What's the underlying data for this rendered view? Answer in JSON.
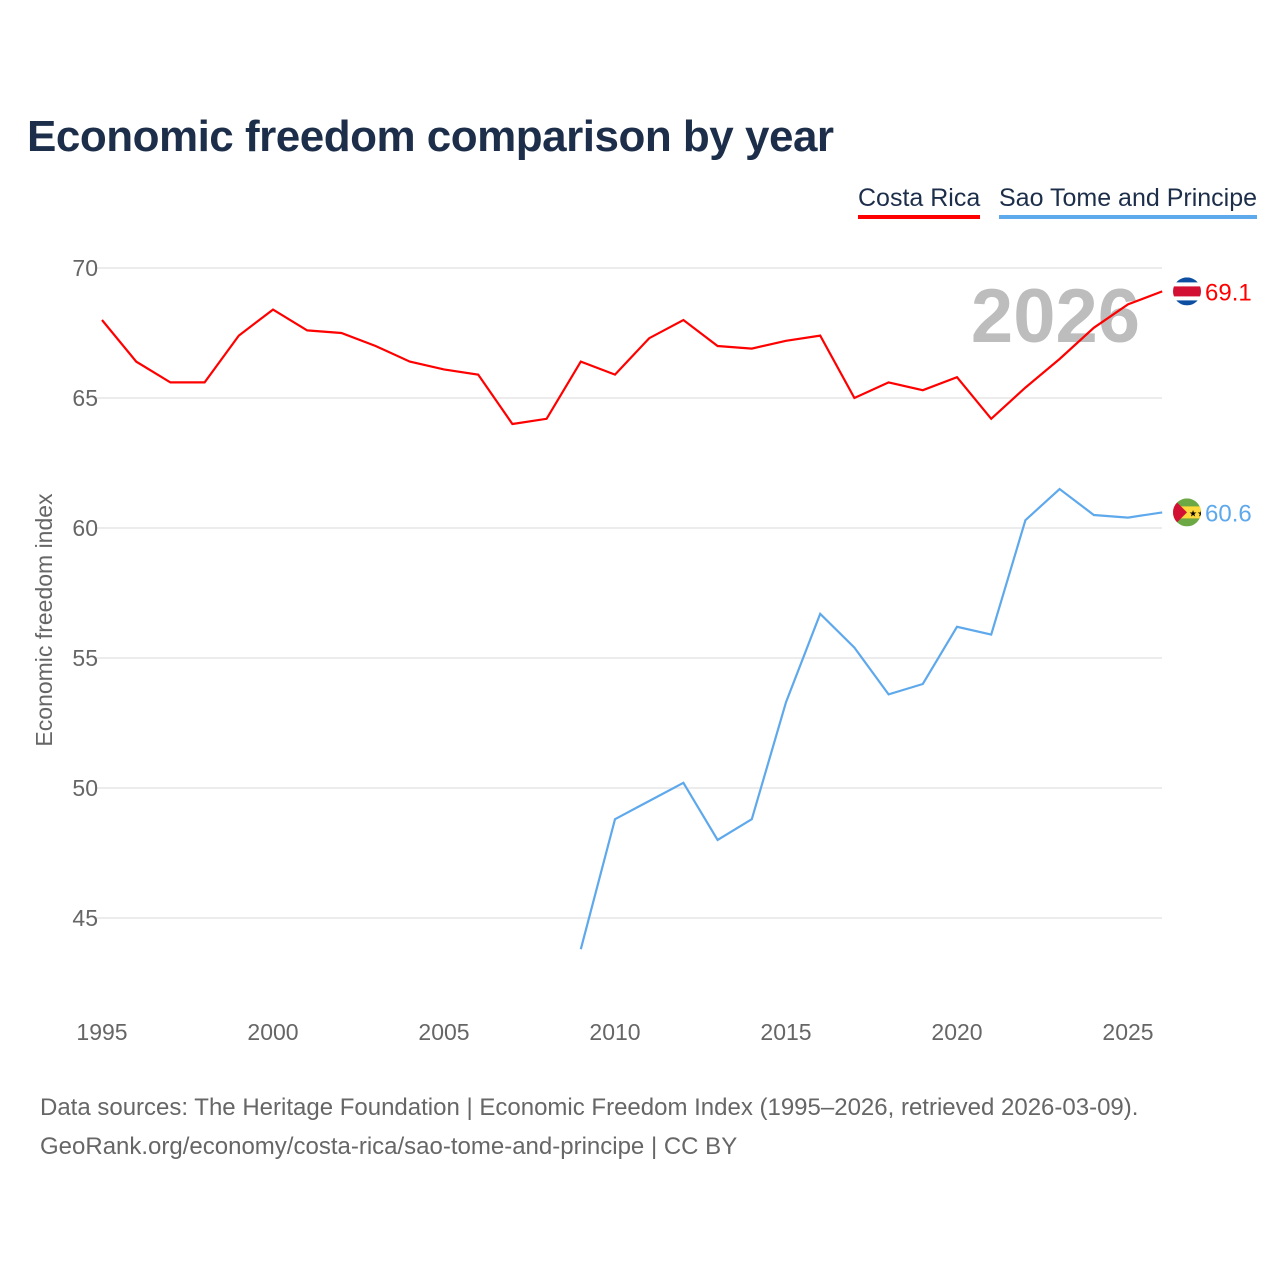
{
  "title": "Economic freedom comparison by year",
  "footer": {
    "line1": "Data sources: The Heritage Foundation | Economic Freedom Index (1995–2026, retrieved 2026-03-09).",
    "line2": "GeoRank.org/economy/costa-rica/sao-tome-and-principe | CC BY"
  },
  "chart_data": {
    "type": "line",
    "title": "Economic freedom comparison by year",
    "xlabel": "",
    "ylabel": "Economic freedom index",
    "xlim": [
      1995,
      2026
    ],
    "ylim": [
      42,
      70
    ],
    "xticks": [
      1995,
      2000,
      2005,
      2010,
      2015,
      2020,
      2025
    ],
    "yticks": [
      45,
      50,
      55,
      60,
      65,
      70
    ],
    "grid": true,
    "legend": "top-right",
    "watermark_year": "2026",
    "series": [
      {
        "name": "Costa Rica",
        "color": "#ff0000",
        "end_label": "69.1",
        "flag": "costa-rica-flag",
        "x": [
          1995,
          1996,
          1997,
          1998,
          1999,
          2000,
          2001,
          2002,
          2003,
          2004,
          2005,
          2006,
          2007,
          2008,
          2009,
          2010,
          2011,
          2012,
          2013,
          2014,
          2015,
          2016,
          2017,
          2018,
          2019,
          2020,
          2021,
          2022,
          2023,
          2024,
          2025,
          2026
        ],
        "values": [
          68.0,
          66.4,
          65.6,
          65.6,
          67.4,
          68.4,
          67.6,
          67.5,
          67.0,
          66.4,
          66.1,
          65.9,
          64.0,
          64.2,
          66.4,
          65.9,
          67.3,
          68.0,
          67.0,
          66.9,
          67.2,
          67.4,
          65.0,
          65.6,
          65.3,
          65.8,
          64.2,
          65.4,
          66.5,
          67.7,
          68.6,
          69.1
        ]
      },
      {
        "name": "Sao Tome and Principe",
        "color": "#5ea8ec",
        "end_label": "60.6",
        "flag": "sao-tome-flag",
        "x": [
          2009,
          2010,
          2011,
          2012,
          2013,
          2014,
          2015,
          2016,
          2017,
          2018,
          2019,
          2020,
          2021,
          2022,
          2023,
          2024,
          2025,
          2026
        ],
        "values": [
          43.8,
          48.8,
          49.5,
          50.2,
          48.0,
          48.8,
          53.3,
          56.7,
          55.4,
          53.6,
          54.0,
          56.2,
          55.9,
          60.3,
          61.5,
          60.5,
          60.4,
          60.6
        ]
      }
    ]
  }
}
